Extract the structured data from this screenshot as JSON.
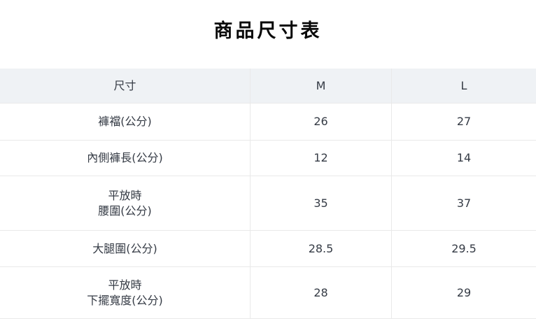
{
  "title": "商品尺寸表",
  "table": {
    "columns": [
      "尺寸",
      "M",
      "L"
    ],
    "rows": [
      {
        "label": "褲襠(公分)",
        "m": "26",
        "l": "27"
      },
      {
        "label": "內側褲長(公分)",
        "m": "12",
        "l": "14"
      },
      {
        "label": "平放時\n腰圍(公分)",
        "m": "35",
        "l": "37"
      },
      {
        "label": "大腿圍(公分)",
        "m": "28.5",
        "l": "29.5"
      },
      {
        "label": "平放時\n下擺寬度(公分)",
        "m": "28",
        "l": "29"
      }
    ]
  },
  "colors": {
    "header_background": "#eff2f5",
    "border": "#e9e9e9",
    "text": "#353b45",
    "title_text": "#0a0a0a",
    "page_background": "#ffffff"
  }
}
